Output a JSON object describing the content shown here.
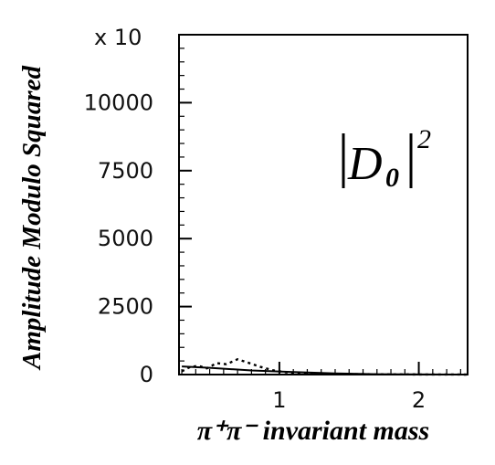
{
  "chart_data": {
    "type": "line",
    "title": "",
    "xlabel": "π⁺π⁻ invariant mass",
    "ylabel": "Amplitude Modulo Squared",
    "y_multiplier": "x 10",
    "annotation": {
      "symbol": "D",
      "subscript": "0",
      "power": "2"
    },
    "xlim": [
      0.28,
      2.35
    ],
    "ylim": [
      0,
      12500
    ],
    "x_ticks": [
      1,
      2
    ],
    "x_tick_labels": [
      "1",
      "2"
    ],
    "y_ticks": [
      0,
      2500,
      5000,
      7500,
      10000
    ],
    "y_tick_labels": [
      "0",
      "2500",
      "5000",
      "7500",
      "10000"
    ],
    "grid": false,
    "series": [
      {
        "style": "dotted",
        "x": [
          0.3,
          0.36,
          0.42,
          0.48,
          0.55,
          0.62,
          0.7,
          0.78,
          0.86,
          0.95,
          1.05,
          1.2,
          1.4,
          1.7,
          2.0,
          2.35
        ],
        "y": [
          120,
          280,
          320,
          230,
          420,
          380,
          560,
          430,
          290,
          160,
          80,
          40,
          20,
          10,
          5,
          0
        ]
      },
      {
        "style": "solid",
        "x": [
          0.3,
          0.5,
          0.8,
          1.1,
          1.4,
          1.7,
          2.35
        ],
        "y": [
          300,
          250,
          150,
          90,
          40,
          15,
          0
        ]
      }
    ]
  }
}
